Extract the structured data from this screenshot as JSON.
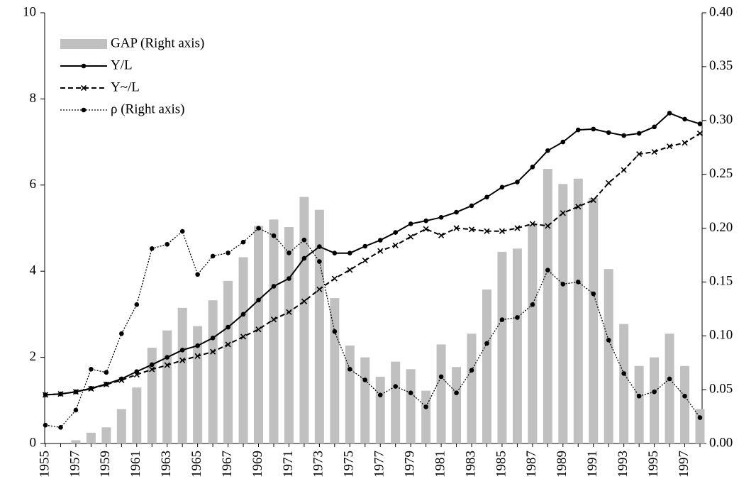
{
  "chart_data": {
    "type": "combo",
    "categories": [
      "1955",
      null,
      "1957",
      null,
      "1959",
      null,
      "1961",
      null,
      "1963",
      null,
      "1965",
      null,
      "1967",
      null,
      "1969",
      null,
      "1971",
      null,
      "1973",
      null,
      "1975",
      null,
      "1977",
      null,
      "1979",
      null,
      "1981",
      null,
      "1983",
      null,
      "1985",
      null,
      "1987",
      null,
      "1989",
      null,
      "1991",
      null,
      "1993",
      null,
      "1995",
      null,
      "1997",
      null
    ],
    "ylim": [
      0,
      10
    ],
    "yticks": [
      0,
      2,
      4,
      6,
      8,
      10
    ],
    "y2lim": [
      0,
      0.4
    ],
    "y2ticks": [
      {
        "value": 0,
        "label": "0.00"
      },
      {
        "value": 0.05,
        "label": "0.05"
      },
      {
        "value": 0.1,
        "label": "0.10"
      },
      {
        "value": 0.15,
        "label": "0.15"
      },
      {
        "value": 0.2,
        "label": "0.20"
      },
      {
        "value": 0.25,
        "label": "0.25"
      },
      {
        "value": 0.3,
        "label": "0.30"
      },
      {
        "value": 0.35,
        "label": "0.35"
      },
      {
        "value": 0.4,
        "label": "0.40"
      }
    ],
    "legend": "top-left",
    "series": [
      {
        "name": "GAP (Right axis)",
        "type": "bar",
        "axis": "y2",
        "color": "#c0c0c0",
        "values": [
          0,
          0,
          0.003,
          0.01,
          0.015,
          0.032,
          0.052,
          0.089,
          0.105,
          0.126,
          0.109,
          0.133,
          0.151,
          0.173,
          0.202,
          0.208,
          0.201,
          0.229,
          0.217,
          0.135,
          0.091,
          0.08,
          0.062,
          0.076,
          0.069,
          0.049,
          0.092,
          0.071,
          0.102,
          0.143,
          0.178,
          0.181,
          0.203,
          0.255,
          0.241,
          0.246,
          0.228,
          0.162,
          0.111,
          0.072,
          0.08,
          0.102,
          0.072,
          0.032
        ]
      },
      {
        "name": "Y/L",
        "type": "line",
        "color": "#000000",
        "dash": "solid",
        "marker": "circle",
        "values": [
          1.13,
          1.15,
          1.2,
          1.28,
          1.38,
          1.5,
          1.67,
          1.83,
          2.0,
          2.17,
          2.27,
          2.45,
          2.7,
          3.0,
          3.33,
          3.65,
          3.83,
          4.3,
          4.57,
          4.42,
          4.42,
          4.58,
          4.72,
          4.9,
          5.1,
          5.17,
          5.25,
          5.37,
          5.52,
          5.72,
          5.95,
          6.07,
          6.42,
          6.8,
          7.0,
          7.28,
          7.3,
          7.22,
          7.15,
          7.2,
          7.35,
          7.67,
          7.53,
          7.42
        ]
      },
      {
        "name": "Y~/L",
        "type": "line",
        "color": "#000000",
        "dash": "dashed",
        "marker": "x",
        "values": [
          1.13,
          1.15,
          1.2,
          1.27,
          1.37,
          1.47,
          1.6,
          1.72,
          1.82,
          1.93,
          2.03,
          2.13,
          2.3,
          2.48,
          2.65,
          2.88,
          3.05,
          3.3,
          3.58,
          3.83,
          4.03,
          4.25,
          4.47,
          4.6,
          4.8,
          4.98,
          4.83,
          5.0,
          4.97,
          4.93,
          4.93,
          5.0,
          5.1,
          5.05,
          5.35,
          5.5,
          5.65,
          6.05,
          6.35,
          6.72,
          6.77,
          6.9,
          6.98,
          7.2
        ]
      },
      {
        "name": "ρ (Right axis)",
        "type": "line",
        "axis": "y2",
        "color": "#000000",
        "dash": "dotted",
        "marker": "circle",
        "values": [
          0.017,
          0.015,
          0.031,
          0.069,
          0.066,
          0.102,
          0.129,
          0.181,
          0.185,
          0.197,
          0.157,
          0.174,
          0.177,
          0.187,
          0.2,
          0.193,
          0.177,
          0.189,
          0.169,
          0.104,
          0.069,
          0.059,
          0.045,
          0.053,
          0.047,
          0.034,
          0.062,
          0.047,
          0.068,
          0.093,
          0.115,
          0.117,
          0.129,
          0.161,
          0.148,
          0.15,
          0.139,
          0.096,
          0.065,
          0.044,
          0.048,
          0.06,
          0.044,
          0.024
        ]
      }
    ]
  }
}
